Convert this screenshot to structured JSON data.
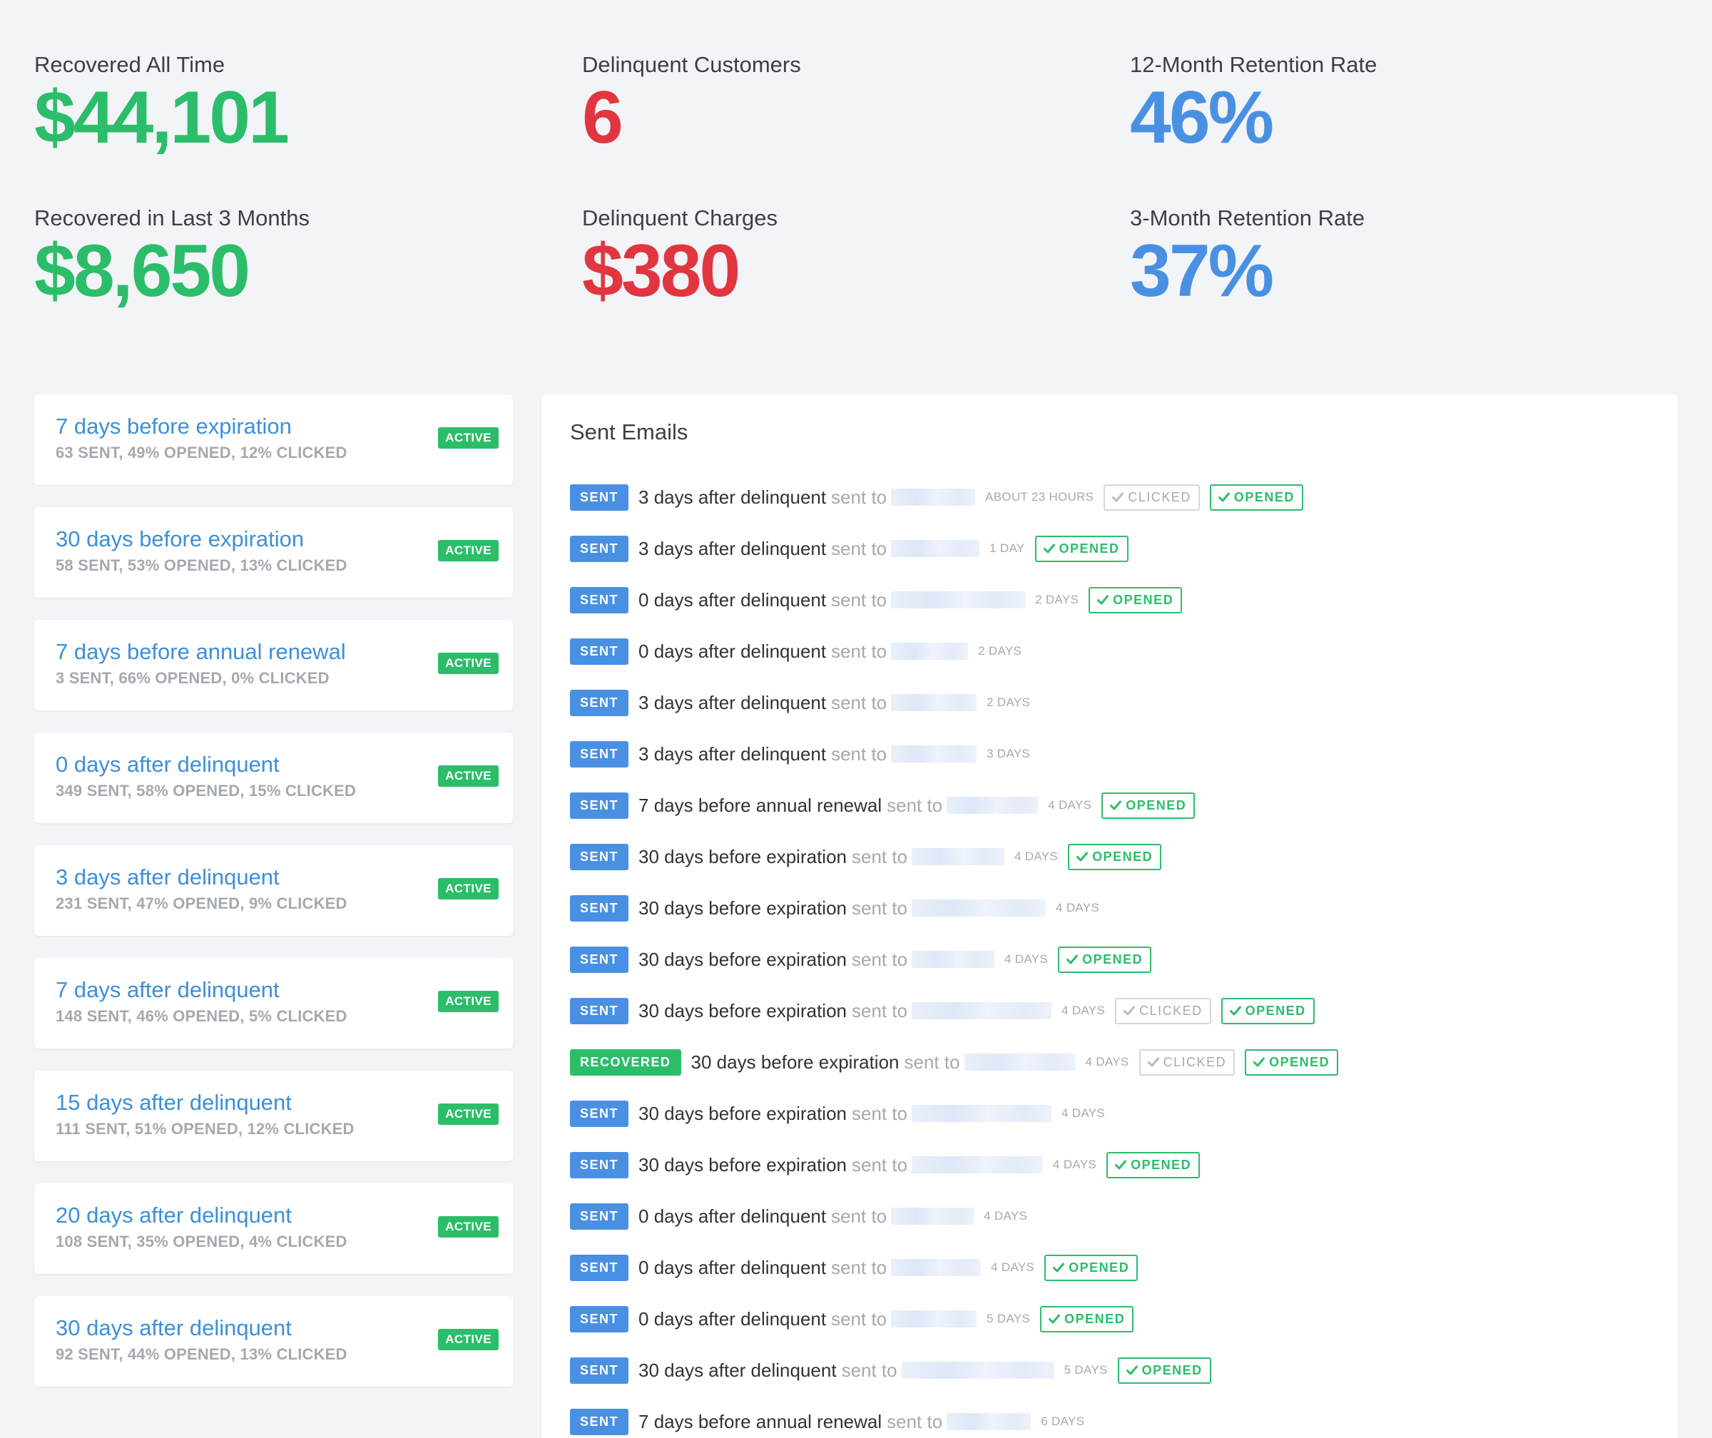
{
  "stats": {
    "recovered_all_time": {
      "label": "Recovered All Time",
      "value": "$44,101"
    },
    "delinquent_customers": {
      "label": "Delinquent Customers",
      "value": "6"
    },
    "retention_12m": {
      "label": "12-Month Retention Rate",
      "value": "46%"
    },
    "recovered_3m": {
      "label": "Recovered in Last 3 Months",
      "value": "$8,650"
    },
    "delinquent_charges": {
      "label": "Delinquent Charges",
      "value": "$380"
    },
    "retention_3m": {
      "label": "3-Month Retention Rate",
      "value": "37%"
    }
  },
  "colors": {
    "green": "#2cbd6a",
    "red": "#e1363f",
    "blue": "#4a90e2",
    "link": "#3d8fd8",
    "muted": "#a4a9b0"
  },
  "sequences": [
    {
      "title": "7 days before expiration",
      "stats": "63 SENT, 49% OPENED, 12% CLICKED",
      "badge": "ACTIVE"
    },
    {
      "title": "30 days before expiration",
      "stats": "58 SENT, 53% OPENED, 13% CLICKED",
      "badge": "ACTIVE"
    },
    {
      "title": "7 days before annual renewal",
      "stats": "3 SENT, 66% OPENED, 0% CLICKED",
      "badge": "ACTIVE"
    },
    {
      "title": "0 days after delinquent",
      "stats": "349 SENT, 58% OPENED, 15% CLICKED",
      "badge": "ACTIVE"
    },
    {
      "title": "3 days after delinquent",
      "stats": "231 SENT, 47% OPENED, 9% CLICKED",
      "badge": "ACTIVE"
    },
    {
      "title": "7 days after delinquent",
      "stats": "148 SENT, 46% OPENED, 5% CLICKED",
      "badge": "ACTIVE"
    },
    {
      "title": "15 days after delinquent",
      "stats": "111 SENT, 51% OPENED, 12% CLICKED",
      "badge": "ACTIVE"
    },
    {
      "title": "20 days after delinquent",
      "stats": "108 SENT, 35% OPENED, 4% CLICKED",
      "badge": "ACTIVE"
    },
    {
      "title": "30 days after delinquent",
      "stats": "92 SENT, 44% OPENED, 13% CLICKED",
      "badge": "ACTIVE"
    }
  ],
  "sent_emails": {
    "title": "Sent Emails",
    "sent_to_label": "sent to",
    "clicked_label": "CLICKED",
    "opened_label": "OPENED",
    "rows": [
      {
        "status": "SENT",
        "name": "3 days after delinquent",
        "time": "ABOUT 23 HOURS",
        "clicked": true,
        "opened": true
      },
      {
        "status": "SENT",
        "name": "3 days after delinquent",
        "time": "1 DAY",
        "clicked": false,
        "opened": true
      },
      {
        "status": "SENT",
        "name": "0 days after delinquent",
        "time": "2 DAYS",
        "clicked": false,
        "opened": true
      },
      {
        "status": "SENT",
        "name": "0 days after delinquent",
        "time": "2 DAYS",
        "clicked": false,
        "opened": false
      },
      {
        "status": "SENT",
        "name": "3 days after delinquent",
        "time": "2 DAYS",
        "clicked": false,
        "opened": false
      },
      {
        "status": "SENT",
        "name": "3 days after delinquent",
        "time": "3 DAYS",
        "clicked": false,
        "opened": false
      },
      {
        "status": "SENT",
        "name": "7 days before annual renewal",
        "time": "4 DAYS",
        "clicked": false,
        "opened": true
      },
      {
        "status": "SENT",
        "name": "30 days before expiration",
        "time": "4 DAYS",
        "clicked": false,
        "opened": true
      },
      {
        "status": "SENT",
        "name": "30 days before expiration",
        "time": "4 DAYS",
        "clicked": false,
        "opened": false
      },
      {
        "status": "SENT",
        "name": "30 days before expiration",
        "time": "4 DAYS",
        "clicked": false,
        "opened": true
      },
      {
        "status": "SENT",
        "name": "30 days before expiration",
        "time": "4 DAYS",
        "clicked": true,
        "opened": true
      },
      {
        "status": "RECOVERED",
        "name": "30 days before expiration",
        "time": "4 DAYS",
        "clicked": true,
        "opened": true
      },
      {
        "status": "SENT",
        "name": "30 days before expiration",
        "time": "4 DAYS",
        "clicked": false,
        "opened": false
      },
      {
        "status": "SENT",
        "name": "30 days before expiration",
        "time": "4 DAYS",
        "clicked": false,
        "opened": true
      },
      {
        "status": "SENT",
        "name": "0 days after delinquent",
        "time": "4 DAYS",
        "clicked": false,
        "opened": false
      },
      {
        "status": "SENT",
        "name": "0 days after delinquent",
        "time": "4 DAYS",
        "clicked": false,
        "opened": true
      },
      {
        "status": "SENT",
        "name": "0 days after delinquent",
        "time": "5 DAYS",
        "clicked": false,
        "opened": true
      },
      {
        "status": "SENT",
        "name": "30 days after delinquent",
        "time": "5 DAYS",
        "clicked": false,
        "opened": true
      },
      {
        "status": "SENT",
        "name": "7 days before annual renewal",
        "time": "6 DAYS",
        "clicked": false,
        "opened": false
      }
    ]
  }
}
